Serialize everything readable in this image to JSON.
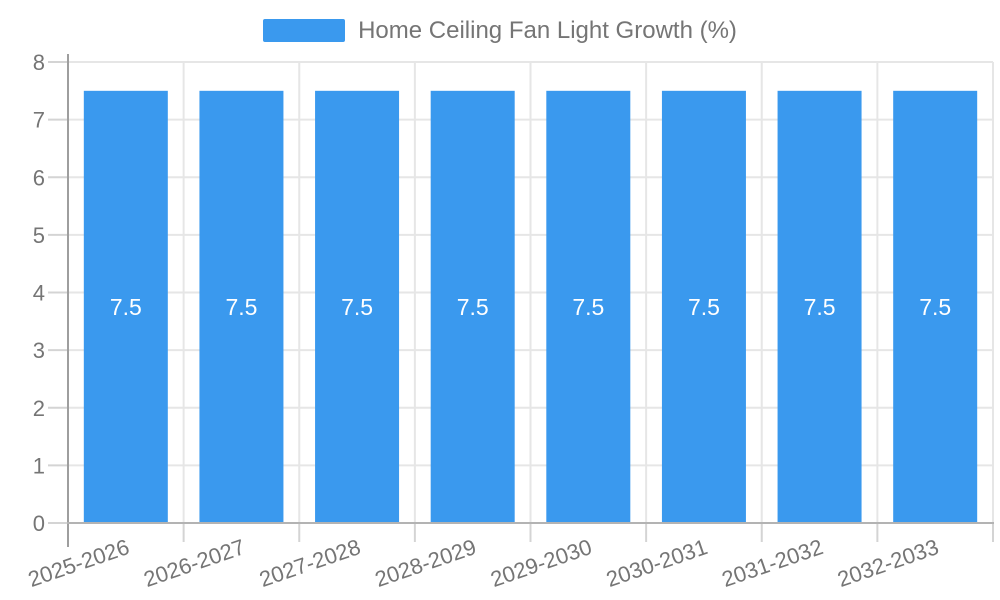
{
  "chart_data": {
    "type": "bar",
    "title": "Home Ceiling Fan Light Growth (%)",
    "categories": [
      "2025-2026",
      "2026-2027",
      "2027-2028",
      "2028-2029",
      "2029-2030",
      "2030-2031",
      "2031-2032",
      "2032-2033"
    ],
    "values": [
      7.5,
      7.5,
      7.5,
      7.5,
      7.5,
      7.5,
      7.5,
      7.5
    ],
    "value_labels": [
      "7.5",
      "7.5",
      "7.5",
      "7.5",
      "7.5",
      "7.5",
      "7.5",
      "7.5"
    ],
    "xlabel": "",
    "ylabel": "",
    "ylim": [
      0,
      8
    ],
    "ytick_step": 1,
    "ytick_labels": [
      "0",
      "1",
      "2",
      "3",
      "4",
      "5",
      "6",
      "7",
      "8"
    ],
    "grid": true,
    "legend_position": "top-center",
    "x_label_rotation_deg": -19,
    "colors": {
      "bar": "#3a99ee",
      "bar_value_label": "#ffffff",
      "axis_text": "#757575",
      "grid_line": "#e6e6e6",
      "tick_line": "#d4d4d4",
      "y_axis_line": "#9e9e9e",
      "x_axis_line": "#b3b3b3",
      "background": "#ffffff"
    }
  }
}
